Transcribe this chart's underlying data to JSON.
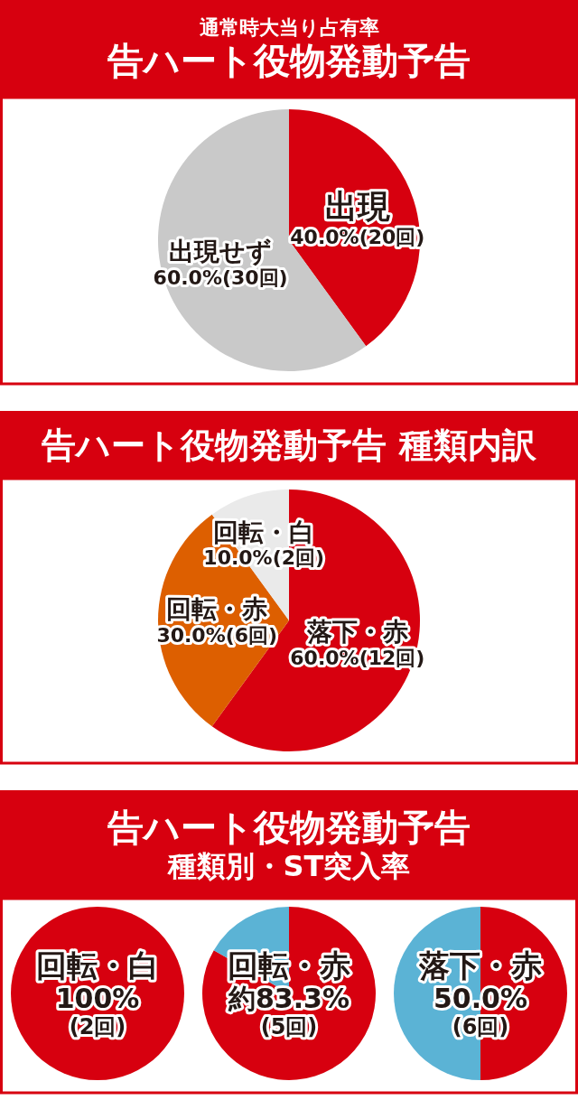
{
  "chart_data": [
    {
      "type": "pie",
      "title": "告ハート役物発動予告",
      "subtitle": "通常時大当り占有率",
      "categories": [
        "出現",
        "出現せず"
      ],
      "values": [
        40,
        60
      ],
      "colors": [
        "#d7000f",
        "#c9c9c9"
      ],
      "value_labels": [
        "40.0%(20回)",
        "60.0%(30回)"
      ]
    },
    {
      "type": "pie",
      "title": "告ハート役物発動予告 種類内訳",
      "categories": [
        "落下・赤",
        "回転・赤",
        "回転・白"
      ],
      "values": [
        60,
        30,
        10
      ],
      "colors": [
        "#d7000f",
        "#dd5f00",
        "#eaeaea"
      ],
      "value_labels": [
        "60.0%(12回)",
        "30.0%(6回)",
        "10.0%(2回)"
      ]
    },
    {
      "type": "pie",
      "categories": [
        "回転・白",
        null
      ],
      "values": [
        100,
        0
      ],
      "colors": [
        "#d7000f",
        "#5bb3d5"
      ],
      "value_labels": [
        "100%\n(2回)",
        null
      ]
    },
    {
      "type": "pie",
      "title": "告ハート役物発動予告",
      "subtitle": "種類別・ST突入率",
      "categories": [
        "回転・赤",
        null
      ],
      "values": [
        83.3,
        16.7
      ],
      "colors": [
        "#d7000f",
        "#5bb3d5"
      ],
      "value_labels": [
        "約83.3%\n(5回)",
        null
      ]
    },
    {
      "type": "pie",
      "categories": [
        "落下・赤",
        null
      ],
      "values": [
        50,
        50
      ],
      "colors": [
        "#d7000f",
        "#5bb3d5"
      ],
      "value_labels": [
        "50.0%\n(6回)",
        null
      ]
    }
  ]
}
